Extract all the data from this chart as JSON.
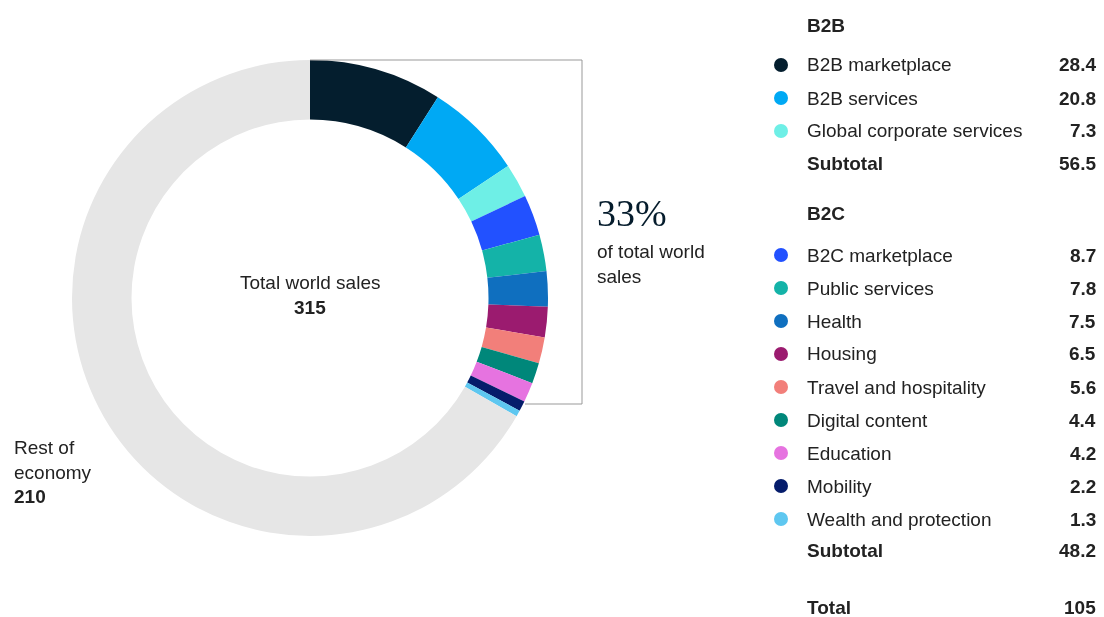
{
  "chart_data": {
    "type": "donut",
    "categories": [
      "B2B marketplace",
      "B2B services",
      "Global corporate services",
      "B2C marketplace",
      "Public services",
      "Health",
      "Housing",
      "Travel and hospitality",
      "Digital content",
      "Education",
      "Mobility",
      "Wealth and protection",
      "Rest of economy"
    ],
    "values": [
      28.4,
      20.8,
      7.3,
      8.7,
      7.8,
      7.5,
      6.5,
      5.6,
      4.4,
      4.2,
      2.2,
      1.3,
      210
    ],
    "colors": [
      "#041e2e",
      "#00a9f4",
      "#6eefe6",
      "#2251ff",
      "#14b3a8",
      "#0f6fbf",
      "#9b1b6f",
      "#f27f7a",
      "#00877a",
      "#e673e0",
      "#051c6b",
      "#5ec7f0",
      "#e6e6e6"
    ],
    "data_labels": true,
    "legend": "right",
    "annotations": [
      "Total world sales",
      "315",
      "33%",
      "of total world sales",
      "B2B",
      "Subtotal",
      "56.5",
      "B2C",
      "Subtotal",
      "48.2",
      "Total",
      "105"
    ]
  }
}
